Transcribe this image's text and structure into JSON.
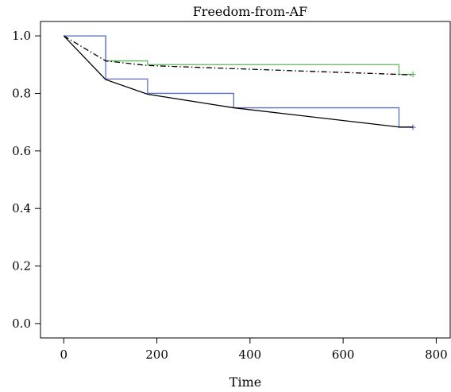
{
  "chart_data": {
    "type": "line",
    "title": "Freedom-from-AF",
    "xlabel": "Time",
    "ylabel": "",
    "xlim": [
      -50,
      830
    ],
    "ylim": [
      -0.05,
      1.05
    ],
    "x_ticks": [
      0,
      200,
      400,
      600,
      800
    ],
    "x_tick_labels": [
      "0",
      "200",
      "400",
      "600",
      "800"
    ],
    "y_ticks": [
      0.0,
      0.2,
      0.4,
      0.6,
      0.8,
      1.0
    ],
    "y_tick_labels": [
      "0.0",
      "0.2",
      "0.4",
      "0.6",
      "0.8",
      "1.0"
    ],
    "grid": false,
    "legend": "none",
    "series": [
      {
        "style": "step",
        "color": "#5cb85c",
        "dash": "solid",
        "x": [
          0,
          90,
          180,
          720,
          750
        ],
        "y": [
          1.0,
          0.913,
          0.9,
          0.866,
          0.866
        ],
        "censor_x": [
          750
        ],
        "censor_y": [
          0.866
        ]
      },
      {
        "style": "step",
        "color": "#5b6fc6",
        "dash": "solid",
        "x": [
          0,
          90,
          180,
          365,
          720,
          750
        ],
        "y": [
          1.0,
          0.85,
          0.8,
          0.75,
          0.682,
          0.682
        ],
        "censor_x": [
          750
        ],
        "censor_y": [
          0.682
        ]
      },
      {
        "style": "line",
        "color": "#000000",
        "dash": "dashdot",
        "x": [
          0,
          90,
          180,
          365,
          720,
          750
        ],
        "y": [
          1.0,
          0.913,
          0.897,
          0.886,
          0.866,
          0.864
        ]
      },
      {
        "style": "line",
        "color": "#000000",
        "dash": "solid",
        "x": [
          0,
          90,
          180,
          365,
          720,
          750
        ],
        "y": [
          1.0,
          0.848,
          0.797,
          0.75,
          0.683,
          0.683
        ]
      }
    ]
  }
}
